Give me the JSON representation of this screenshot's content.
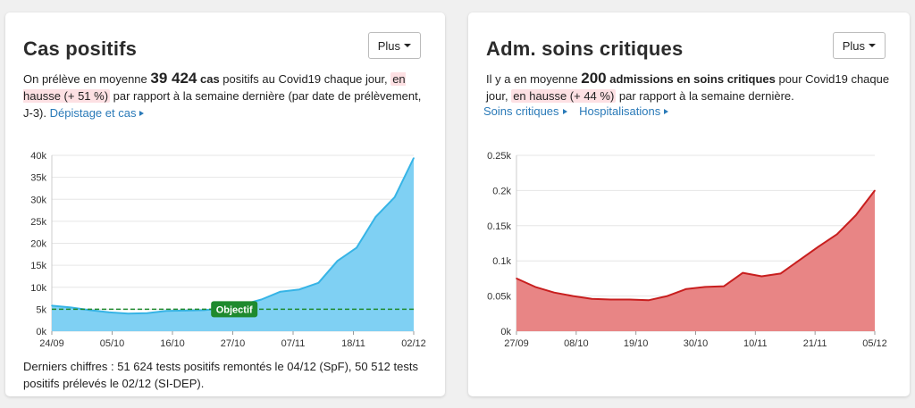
{
  "cards": [
    {
      "title": "Cas positifs",
      "more_label": "Plus",
      "desc_pre": "On prélève en moyenne ",
      "desc_big": "39 424",
      "desc_bold": " cas",
      "desc_mid": " positifs au Covid19 chaque jour, ",
      "desc_trend": "en hausse (+ 51 %)",
      "desc_post": " par rapport à la semaine dernière (par date de prélèvement, J-3).",
      "link": "Dépistage et cas",
      "footer": "Derniers chiffres : 51 624 tests positifs remontés le 04/12 (SpF), 50 512 tests positifs prélevés le 02/12 (SI-DEP).",
      "objective_label": "Objectif"
    },
    {
      "title": "Adm. soins critiques",
      "more_label": "Plus",
      "desc_pre": "Il y a en moyenne ",
      "desc_big": "200",
      "desc_bold": " admissions en soins critiques",
      "desc_mid": " pour Covid19 chaque jour, ",
      "desc_trend": "en hausse (+ 44 %)",
      "desc_post": " par rapport à la semaine dernière.",
      "links": [
        "Soins critiques",
        "Hospitalisations"
      ]
    }
  ],
  "colors": {
    "cases_fill": "#7fd0f3",
    "cases_line": "#36b4e6",
    "icu_fill": "#e88585",
    "icu_line": "#c81e1e",
    "objective": "#1f8a2e"
  },
  "chart_data": [
    {
      "type": "area",
      "x": [
        "24/09",
        "27/09",
        "01/10",
        "05/10",
        "09/10",
        "13/10",
        "16/10",
        "20/10",
        "24/10",
        "27/10",
        "31/10",
        "03/11",
        "07/11",
        "11/11",
        "15/11",
        "18/11",
        "22/11",
        "26/11",
        "30/11",
        "02/12"
      ],
      "values": [
        5800,
        5400,
        4800,
        4300,
        4000,
        4100,
        4600,
        4700,
        4800,
        5200,
        6000,
        7200,
        9000,
        9500,
        11000,
        16000,
        19000,
        26000,
        30500,
        39400
      ],
      "xticks": [
        "24/09",
        "05/10",
        "16/10",
        "27/10",
        "07/11",
        "18/11",
        "02/12"
      ],
      "yticks": [
        "0k",
        "5k",
        "10k",
        "15k",
        "20k",
        "25k",
        "30k",
        "35k",
        "40k"
      ],
      "ylim": [
        0,
        40000
      ],
      "objective": 5000,
      "grid": true
    },
    {
      "type": "area",
      "x": [
        "27/09",
        "01/10",
        "05/10",
        "08/10",
        "12/10",
        "15/10",
        "19/10",
        "23/10",
        "26/10",
        "30/10",
        "03/11",
        "07/11",
        "10/11",
        "14/11",
        "17/11",
        "21/11",
        "25/11",
        "28/11",
        "01/12",
        "05/12"
      ],
      "values": [
        0.075,
        0.063,
        0.055,
        0.05,
        0.046,
        0.045,
        0.045,
        0.044,
        0.05,
        0.06,
        0.063,
        0.064,
        0.083,
        0.078,
        0.082,
        0.101,
        0.12,
        0.138,
        0.165,
        0.2
      ],
      "xticks": [
        "27/09",
        "08/10",
        "19/10",
        "30/10",
        "10/11",
        "21/11",
        "05/12"
      ],
      "yticks": [
        "0k",
        "0.05k",
        "0.1k",
        "0.15k",
        "0.2k",
        "0.25k"
      ],
      "ylim": [
        0,
        0.25
      ],
      "grid": true
    }
  ]
}
